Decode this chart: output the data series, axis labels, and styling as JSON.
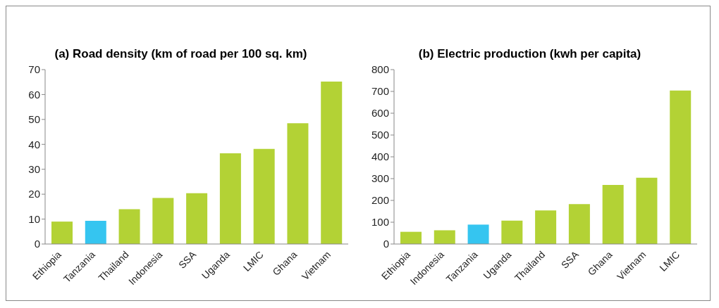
{
  "chart_data": [
    {
      "type": "bar",
      "title": "(a) Road density (km of road per 100 sq. km)",
      "categories": [
        "Ethiopia",
        "Tanzania",
        "Thailand",
        "Indonesia",
        "SSA",
        "Uganda",
        "LMIC",
        "Ghana",
        "Vietnam"
      ],
      "values": [
        9.0,
        9.3,
        14.0,
        18.5,
        20.4,
        36.4,
        38.2,
        48.5,
        65.2
      ],
      "colors": [
        "#b3d235",
        "#35c5f0",
        "#b3d235",
        "#b3d235",
        "#b3d235",
        "#b3d235",
        "#b3d235",
        "#b3d235",
        "#b3d235"
      ],
      "ylim": [
        0,
        70
      ],
      "yticks": [
        0,
        10,
        20,
        30,
        40,
        50,
        60,
        70
      ],
      "grid": false,
      "legend": false
    },
    {
      "type": "bar",
      "title": "(b) Electric production (kwh per capita)",
      "categories": [
        "Ethiopia",
        "Indonesia",
        "Tanzania",
        "Uganda",
        "Thailand",
        "SSA",
        "Ghana",
        "Vietnam",
        "LMIC"
      ],
      "values": [
        56,
        63,
        89,
        107,
        154,
        183,
        271,
        304,
        704
      ],
      "colors": [
        "#b3d235",
        "#b3d235",
        "#35c5f0",
        "#b3d235",
        "#b3d235",
        "#b3d235",
        "#b3d235",
        "#b3d235",
        "#b3d235"
      ],
      "ylim": [
        0,
        800
      ],
      "yticks": [
        0,
        100,
        200,
        300,
        400,
        500,
        600,
        700,
        800
      ],
      "grid": false,
      "legend": false
    }
  ]
}
